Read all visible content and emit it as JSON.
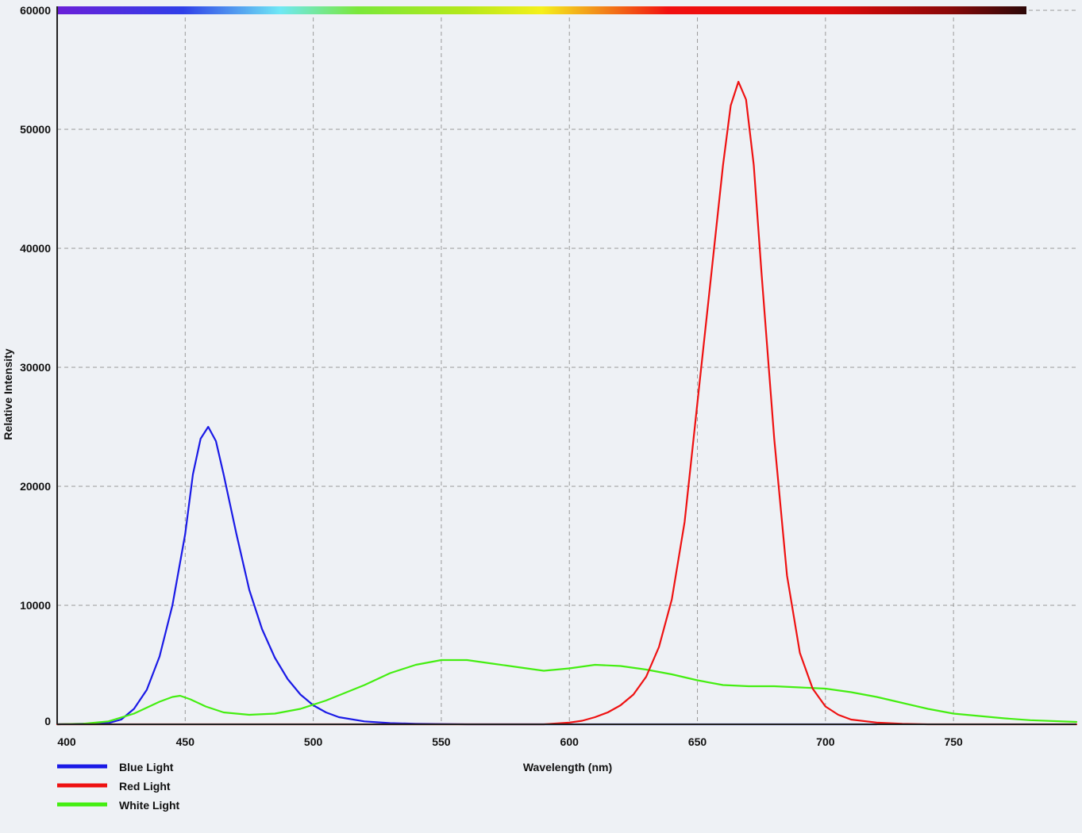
{
  "chart_data": {
    "type": "line",
    "title": "",
    "xlabel": "Wavelength (nm)",
    "ylabel": "Relative Intensity",
    "xlim": [
      400,
      798
    ],
    "ylim": [
      0,
      60000
    ],
    "x_ticks": [
      400,
      450,
      500,
      550,
      600,
      650,
      700,
      750
    ],
    "y_ticks": [
      0,
      10000,
      20000,
      30000,
      40000,
      50000,
      60000
    ],
    "grid": true,
    "legend_position": "bottom-left",
    "spectrum_bar": true,
    "series": [
      {
        "name": "Blue Light",
        "color": "#1a1ae6",
        "x": [
          400,
          420,
          425,
          430,
          435,
          440,
          445,
          450,
          453,
          456,
          459,
          462,
          465,
          470,
          475,
          480,
          485,
          490,
          495,
          500,
          505,
          510,
          520,
          530,
          540,
          560,
          600,
          650,
          700,
          720
        ],
        "y": [
          0,
          100,
          400,
          1300,
          2900,
          5700,
          10000,
          16000,
          21000,
          24000,
          25000,
          23800,
          21000,
          16000,
          11300,
          8000,
          5600,
          3800,
          2500,
          1600,
          1000,
          600,
          250,
          100,
          50,
          0,
          0,
          0,
          0,
          0
        ]
      },
      {
        "name": "Red Light",
        "color": "#ee1111",
        "x": [
          400,
          550,
          590,
          600,
          605,
          610,
          615,
          620,
          625,
          630,
          635,
          640,
          645,
          650,
          655,
          660,
          663,
          666,
          669,
          672,
          675,
          680,
          685,
          690,
          695,
          700,
          705,
          710,
          720,
          730,
          740,
          798
        ],
        "y": [
          0,
          0,
          0,
          150,
          300,
          600,
          1000,
          1600,
          2500,
          4000,
          6500,
          10500,
          17000,
          27000,
          37000,
          47000,
          52000,
          54000,
          52500,
          47000,
          38000,
          24000,
          12500,
          6000,
          3000,
          1500,
          800,
          400,
          150,
          50,
          0,
          0
        ]
      },
      {
        "name": "White Light",
        "color": "#44ee11",
        "x": [
          400,
          410,
          420,
          430,
          435,
          440,
          445,
          448,
          452,
          458,
          465,
          475,
          485,
          495,
          505,
          520,
          530,
          540,
          550,
          560,
          570,
          580,
          590,
          600,
          610,
          620,
          630,
          640,
          650,
          660,
          670,
          680,
          690,
          700,
          710,
          720,
          730,
          740,
          750,
          760,
          770,
          780,
          798
        ],
        "y": [
          0,
          50,
          250,
          900,
          1400,
          1900,
          2300,
          2400,
          2100,
          1500,
          1000,
          800,
          900,
          1300,
          2000,
          3300,
          4300,
          5000,
          5400,
          5400,
          5100,
          4800,
          4500,
          4700,
          5000,
          4900,
          4600,
          4200,
          3700,
          3300,
          3200,
          3200,
          3100,
          3000,
          2700,
          2300,
          1800,
          1300,
          900,
          700,
          500,
          350,
          200
        ]
      }
    ]
  }
}
